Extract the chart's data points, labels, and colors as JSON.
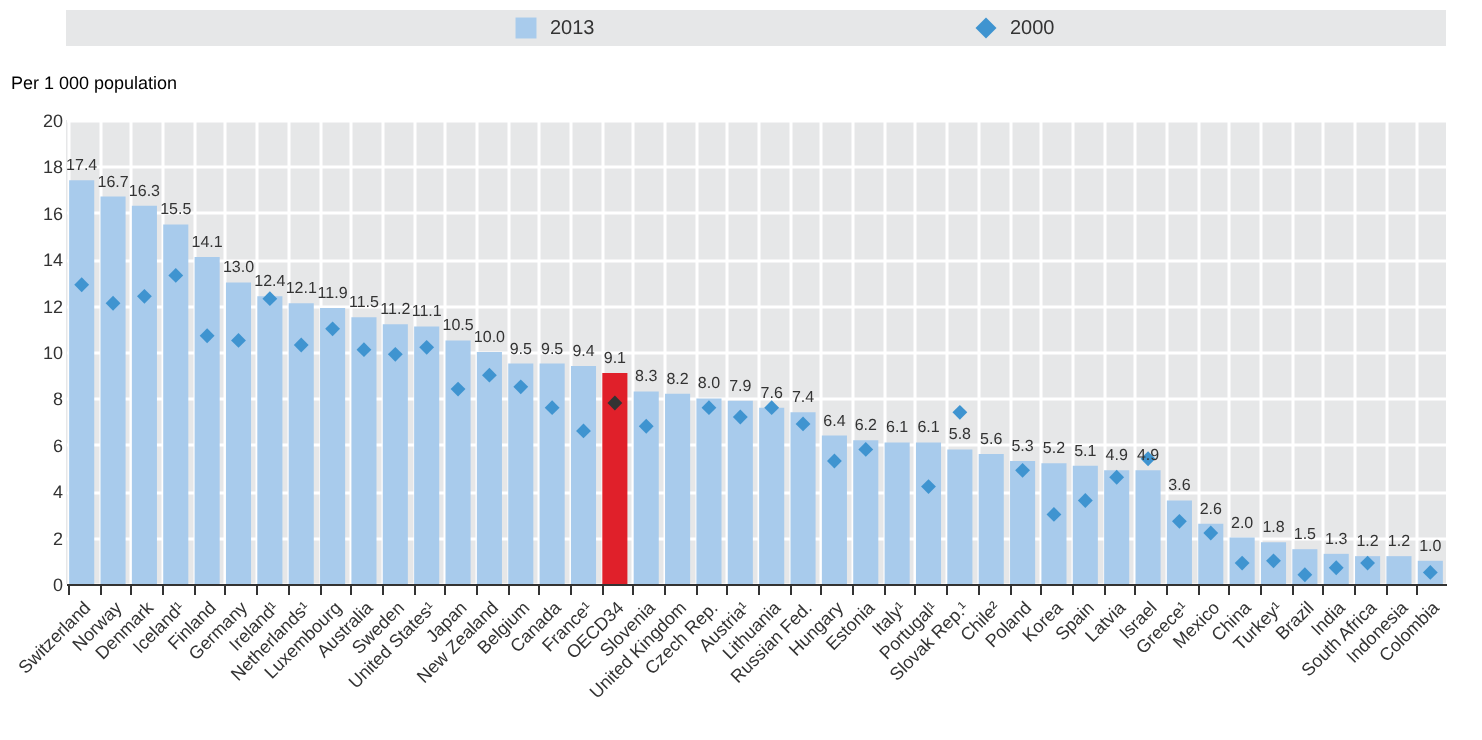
{
  "chart_data": {
    "type": "bar",
    "ylabel": "Per 1 000 population",
    "categories": [
      "Switzerland",
      "Norway",
      "Denmark",
      "Iceland¹",
      "Finland",
      "Germany",
      "Ireland¹",
      "Netherlands¹",
      "Luxembourg",
      "Australia",
      "Sweden",
      "United States¹",
      "Japan",
      "New Zealand",
      "Belgium",
      "Canada",
      "France¹",
      "OECD34",
      "Slovenia",
      "United Kingdom",
      "Czech Rep.",
      "Austria¹",
      "Lithuania",
      "Russian Fed.",
      "Hungary",
      "Estonia",
      "Italy¹",
      "Portugal¹",
      "Slovak Rep.¹",
      "Chile²",
      "Poland",
      "Korea",
      "Spain",
      "Latvia",
      "Israel",
      "Greece¹",
      "Mexico",
      "China",
      "Turkey¹",
      "Brazil",
      "India",
      "South Africa",
      "Indonesia",
      "Colombia"
    ],
    "series": [
      {
        "name": "2013",
        "color": "#a8cbec",
        "value_labels": [
          "17.4",
          "16.7",
          "16.3",
          "15.5",
          "14.1",
          "13.0",
          "12.4",
          "12.1",
          "11.9",
          "11.5",
          "11.2",
          "11.1",
          "10.5",
          "10.0",
          "9.5",
          "9.5",
          "9.4",
          "9.1",
          "8.3",
          "8.2",
          "8.0",
          "7.9",
          "7.6",
          "7.4",
          "6.4",
          "6.2",
          "6.1",
          "6.1",
          "5.8",
          "5.6",
          "5.3",
          "5.2",
          "5.1",
          "4.9",
          "4.9",
          "3.6",
          "2.6",
          "2.0",
          "1.8",
          "1.5",
          "1.3",
          "1.2",
          "1.2",
          "1.0"
        ],
        "colors": [
          "#a8cbec",
          "#a8cbec",
          "#a8cbec",
          "#a8cbec",
          "#a8cbec",
          "#a8cbec",
          "#a8cbec",
          "#a8cbec",
          "#a8cbec",
          "#a8cbec",
          "#a8cbec",
          "#a8cbec",
          "#a8cbec",
          "#a8cbec",
          "#a8cbec",
          "#a8cbec",
          "#a8cbec",
          "#e0202a",
          "#a8cbec",
          "#a8cbec",
          "#a8cbec",
          "#a8cbec",
          "#a8cbec",
          "#a8cbec",
          "#a8cbec",
          "#a8cbec",
          "#a8cbec",
          "#a8cbec",
          "#a8cbec",
          "#a8cbec",
          "#a8cbec",
          "#a8cbec",
          "#a8cbec",
          "#a8cbec",
          "#a8cbec",
          "#a8cbec",
          "#a8cbec",
          "#a8cbec",
          "#a8cbec",
          "#a8cbec",
          "#a8cbec",
          "#a8cbec",
          "#a8cbec",
          "#a8cbec"
        ],
        "values": [
          17.4,
          16.7,
          16.3,
          15.5,
          14.1,
          13.0,
          12.4,
          12.1,
          11.9,
          11.5,
          11.2,
          11.1,
          10.5,
          10.0,
          9.5,
          9.5,
          9.4,
          9.1,
          8.3,
          8.2,
          8.0,
          7.9,
          7.6,
          7.4,
          6.4,
          6.2,
          6.1,
          6.1,
          5.8,
          5.6,
          5.3,
          5.2,
          5.1,
          4.9,
          4.9,
          3.6,
          2.6,
          2.0,
          1.8,
          1.5,
          1.3,
          1.2,
          1.2,
          1.0
        ]
      },
      {
        "name": "2000",
        "type": "scatter",
        "marker": "diamond",
        "color": "#3f94d0",
        "colors": [
          "#3f94d0",
          "#3f94d0",
          "#3f94d0",
          "#3f94d0",
          "#3f94d0",
          "#3f94d0",
          "#3f94d0",
          "#3f94d0",
          "#3f94d0",
          "#3f94d0",
          "#3f94d0",
          "#3f94d0",
          "#3f94d0",
          "#3f94d0",
          "#3f94d0",
          "#3f94d0",
          "#3f94d0",
          "#333333",
          "#3f94d0",
          "#3f94d0",
          "#3f94d0",
          "#3f94d0",
          "#3f94d0",
          "#3f94d0",
          "#3f94d0",
          "#3f94d0",
          "#3f94d0",
          "#3f94d0",
          "#3f94d0",
          "#3f94d0",
          "#3f94d0",
          "#3f94d0",
          "#3f94d0",
          "#3f94d0",
          "#3f94d0",
          "#3f94d0",
          "#3f94d0",
          "#3f94d0",
          "#3f94d0",
          "#3f94d0",
          "#3f94d0",
          "#3f94d0",
          "#3f94d0",
          "#3f94d0"
        ],
        "values": [
          12.9,
          12.1,
          12.4,
          13.3,
          10.7,
          10.5,
          12.3,
          10.3,
          11.0,
          10.1,
          9.9,
          10.2,
          8.4,
          9.0,
          8.5,
          7.6,
          6.6,
          7.8,
          6.8,
          null,
          7.6,
          7.2,
          7.6,
          6.9,
          5.3,
          5.8,
          null,
          4.2,
          7.4,
          null,
          4.9,
          3.0,
          3.6,
          4.6,
          5.4,
          2.7,
          2.2,
          0.9,
          1.0,
          0.4,
          0.7,
          0.9,
          null,
          0.5
        ]
      }
    ],
    "ylim": [
      0,
      20
    ],
    "yticks": [
      0,
      2,
      4,
      6,
      8,
      10,
      12,
      14,
      16,
      18,
      20
    ],
    "grid": true,
    "legend": "top"
  }
}
